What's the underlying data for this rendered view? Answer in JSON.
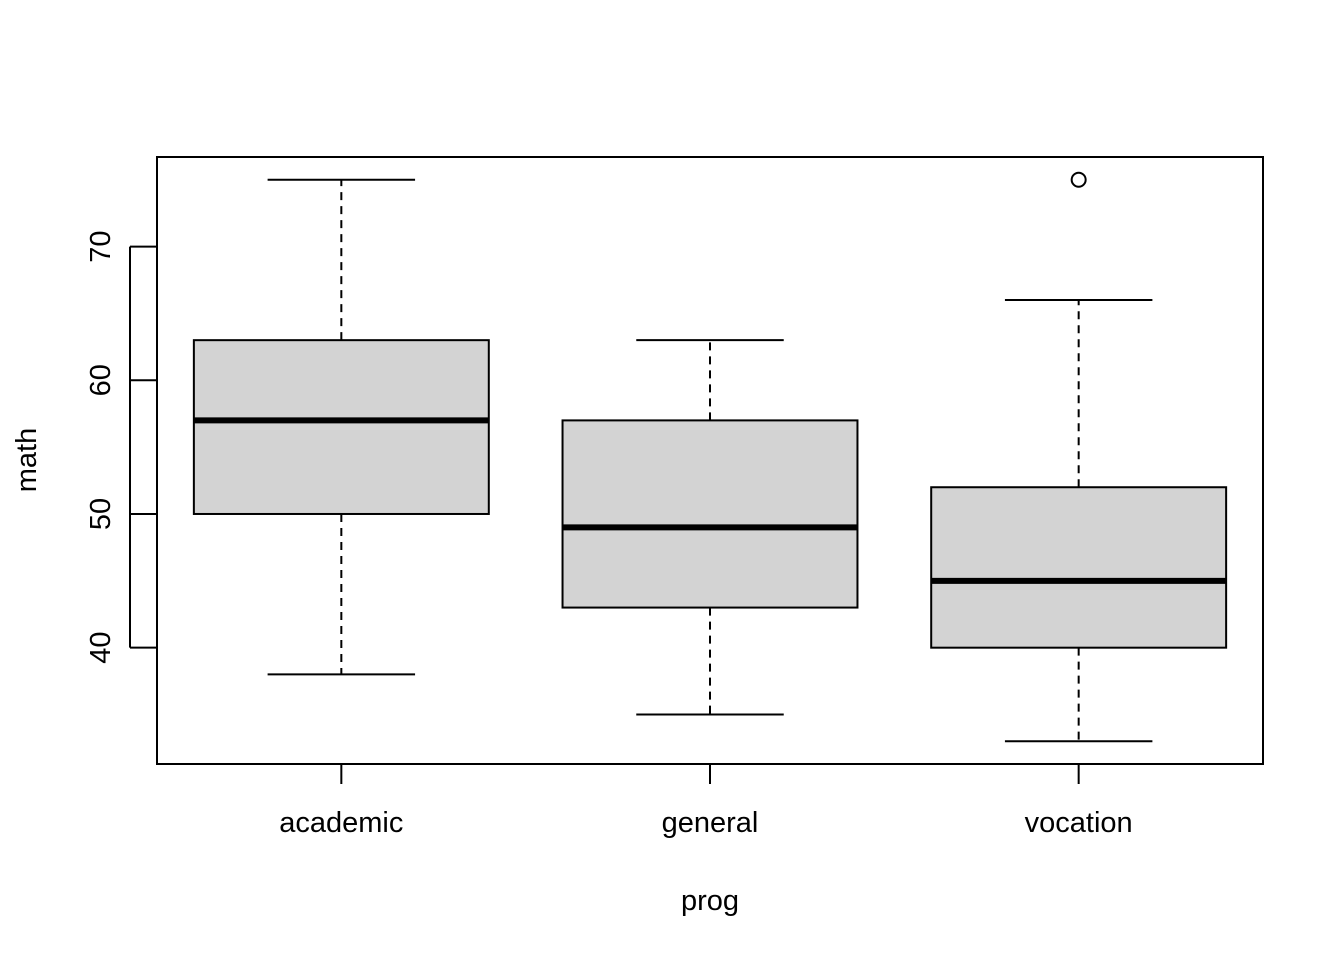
{
  "chart_data": {
    "type": "boxplot",
    "title": "",
    "xlabel": "prog",
    "ylabel": "math",
    "ylim": [
      31.3,
      76.7
    ],
    "y_ticks": [
      40,
      50,
      60,
      70
    ],
    "grid": false,
    "box_fill": "#d3d3d3",
    "categories": [
      "academic",
      "general",
      "vocation"
    ],
    "boxes": [
      {
        "category": "academic",
        "whisker_low": 38,
        "q1": 50,
        "median": 57,
        "q3": 63,
        "whisker_high": 75,
        "outliers": []
      },
      {
        "category": "general",
        "whisker_low": 35,
        "q1": 43,
        "median": 49,
        "q3": 57,
        "whisker_high": 63,
        "outliers": []
      },
      {
        "category": "vocation",
        "whisker_low": 33,
        "q1": 40,
        "median": 45,
        "q3": 52,
        "whisker_high": 66,
        "outliers": [
          75
        ]
      }
    ]
  }
}
